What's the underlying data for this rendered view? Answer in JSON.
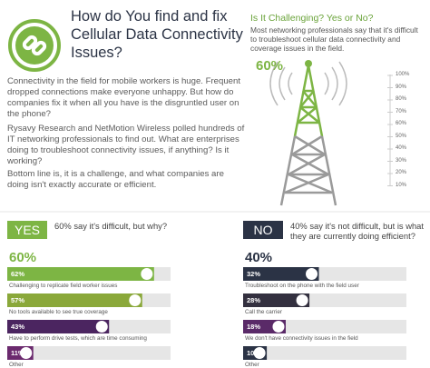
{
  "header": {
    "title_lines": [
      "How do You find and fix",
      "Cellular Data Connectivity",
      "Issues?"
    ]
  },
  "intro": [
    "Connectivity in the field for mobile workers is huge. Frequent dropped connections make everyone unhappy. But how do companies fix it when all you have is the disgruntled user on the phone?",
    "Rysavy Research and NetMotion Wireless polled hundreds of IT networking professionals to find out. What are enterprises doing to troubleshoot connectivity issues, if anything? Is it working?",
    "Bottom line is, it is a challenge, and what companies are doing isn't exactly accurate or efficient."
  ],
  "challenge": {
    "heading": "Is It Challenging? Yes or No?",
    "text": "Most networking professionals say that it's difficult to troubleshoot cellular data connectivity and coverage issues in the field.",
    "figure": "60%",
    "scale": [
      "100%",
      "90%",
      "80%",
      "70%",
      "60%",
      "50%",
      "40%",
      "30%",
      "20%",
      "10%"
    ]
  },
  "yes": {
    "badge": "YES",
    "question": "60% say it's difficult, but why?",
    "share": "60%",
    "items": [
      {
        "pct": 62,
        "label": "62%",
        "text": "Challenging to replicate field worker issues",
        "color": "#7db544"
      },
      {
        "pct": 57,
        "label": "57%",
        "text": "No tools available to see true coverage",
        "color": "#8aa83a"
      },
      {
        "pct": 43,
        "label": "43%",
        "text": "Have to perform drive tests, which are time consuming",
        "color": "#4b2560"
      },
      {
        "pct": 11,
        "label": "11%",
        "text": "Other",
        "color": "#6b2a6e"
      }
    ]
  },
  "no": {
    "badge": "NO",
    "question": "40% say it's not difficult, but is what they are currently doing efficient?",
    "share": "40%",
    "items": [
      {
        "pct": 32,
        "label": "32%",
        "text": "Troubleshoot on the phone with the field user",
        "color": "#2b3345"
      },
      {
        "pct": 28,
        "label": "28%",
        "text": "Call the carrier",
        "color": "#33303f"
      },
      {
        "pct": 18,
        "label": "18%",
        "text": "We don't have connectivity issues in the field",
        "color": "#5a2a68"
      },
      {
        "pct": 10,
        "label": "10%",
        "text": "Other",
        "color": "#2b3345"
      }
    ]
  }
}
